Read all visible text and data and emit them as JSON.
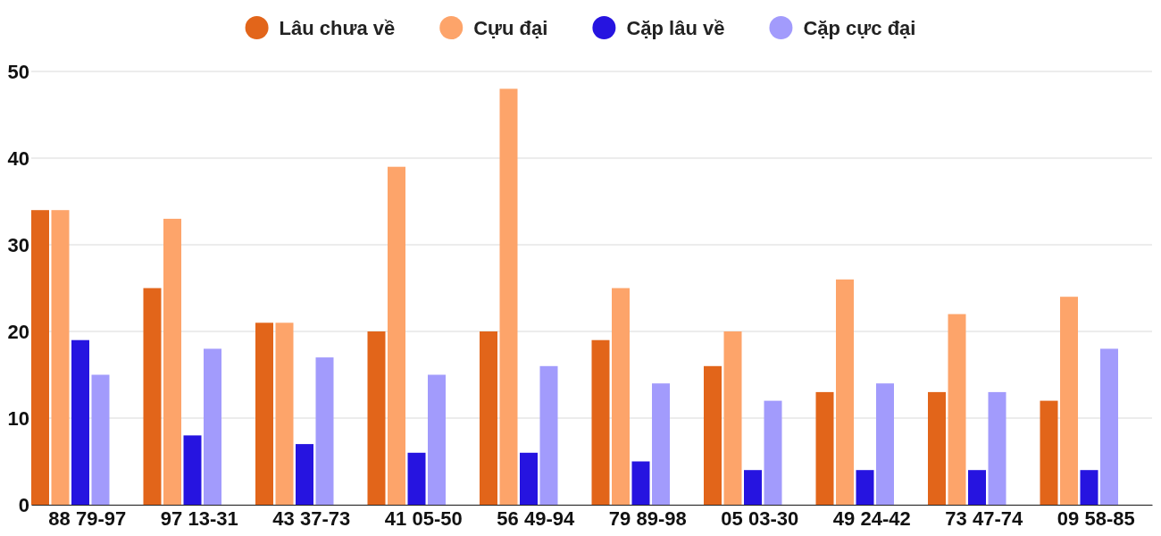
{
  "chart_data": {
    "type": "bar",
    "categories": [
      "88 79-97",
      "97 13-31",
      "43 37-73",
      "41 05-50",
      "56 49-94",
      "79 89-98",
      "05 03-30",
      "49 24-42",
      "73 47-74",
      "09 58-85"
    ],
    "series": [
      {
        "name": "Lâu chưa về",
        "color": "#e2651a",
        "values": [
          34,
          25,
          21,
          20,
          20,
          19,
          16,
          13,
          13,
          12
        ]
      },
      {
        "name": "Cựu đại",
        "color": "#fda46a",
        "values": [
          34,
          33,
          21,
          39,
          48,
          25,
          20,
          26,
          22,
          24
        ]
      },
      {
        "name": "Cặp lâu về",
        "color": "#2614e0",
        "values": [
          19,
          8,
          7,
          6,
          6,
          5,
          4,
          4,
          4,
          4
        ]
      },
      {
        "name": "Cặp cực đại",
        "color": "#a29bfc",
        "values": [
          15,
          18,
          17,
          15,
          16,
          14,
          12,
          14,
          13,
          18
        ]
      }
    ],
    "ylim": [
      0,
      50
    ],
    "yticks": [
      0,
      10,
      20,
      30,
      40,
      50
    ],
    "grid": "y",
    "legend": "top"
  }
}
